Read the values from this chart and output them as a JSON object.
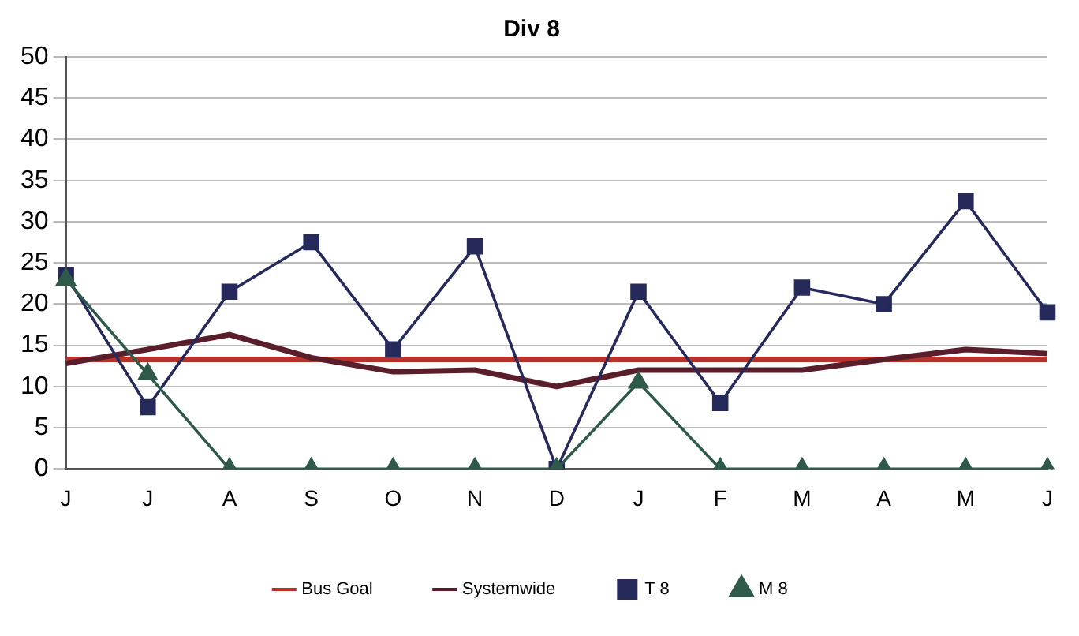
{
  "chart_data": {
    "type": "line",
    "title": "Div 8",
    "categories": [
      "J",
      "J",
      "A",
      "S",
      "O",
      "N",
      "D",
      "J",
      "F",
      "M",
      "A",
      "M",
      "J"
    ],
    "series": [
      {
        "name": "Bus Goal",
        "color": "#b8332b",
        "marker": "none",
        "values": [
          13.3,
          13.3,
          13.3,
          13.3,
          13.3,
          13.3,
          13.3,
          13.3,
          13.3,
          13.3,
          13.3,
          13.3,
          13.3
        ]
      },
      {
        "name": "Systemwide",
        "color": "#5a1e2a",
        "marker": "none",
        "values": [
          12.8,
          14.5,
          16.3,
          13.5,
          11.8,
          12,
          10,
          12,
          12,
          12,
          13.3,
          14.5,
          14
        ]
      },
      {
        "name": "T 8",
        "color": "#262a5a",
        "marker": "square",
        "values": [
          23.5,
          7.5,
          21.5,
          27.5,
          14.5,
          27,
          0,
          21.5,
          8,
          22,
          20,
          32.5,
          19
        ]
      },
      {
        "name": "M 8",
        "color": "#2f5a4a",
        "marker": "triangle",
        "values": [
          23,
          11.5,
          0,
          0,
          0,
          0,
          0,
          10.5,
          0,
          0,
          0,
          0,
          0
        ]
      }
    ],
    "ylim": [
      0,
      50
    ],
    "yticks": [
      0,
      5,
      10,
      15,
      20,
      25,
      30,
      35,
      40,
      45,
      50
    ],
    "grid": "y",
    "legend": "bottom"
  }
}
